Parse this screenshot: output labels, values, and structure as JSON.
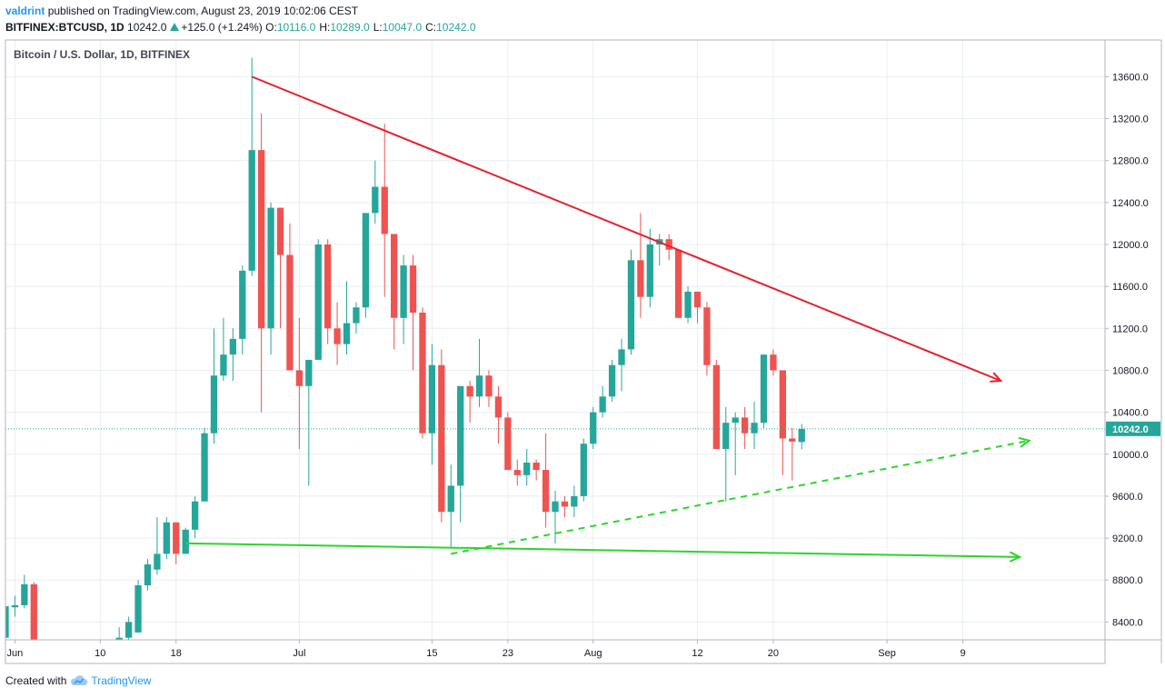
{
  "header": {
    "user": "valdrint",
    "published_text": "published on TradingView.com, August 23, 2019 10:02:06 CEST",
    "symbol": "BITFINEX:BTCUSD, 1D",
    "last": "10242.0",
    "change": "+125.0 (+1.24%)",
    "open_label": "O:",
    "open_value": "10116.0",
    "high_label": "H:",
    "high_value": "10289.0",
    "low_label": "L:",
    "low_value": "10047.0",
    "close_label": "C:",
    "close_value": "10242.0"
  },
  "footer": {
    "created_with": "Created with",
    "brand": "TradingView"
  },
  "colors": {
    "up": "#26a69a",
    "down": "#ef5350",
    "resistance": "#e5202b",
    "support": "#2ad62a",
    "grid": "#e8eef4"
  },
  "chart_data": {
    "type": "candlestick",
    "title": "Bitcoin / U.S. Dollar, 1D, BITFINEX",
    "price_label": "10242.0",
    "last_price": 10242.0,
    "ylim": [
      8230,
      13950
    ],
    "xlim": [
      "2019-05-31",
      "2019-09-24"
    ],
    "y_ticks": [
      8400,
      8800,
      9200,
      9600,
      10000,
      10400,
      10800,
      11200,
      11600,
      12000,
      12400,
      12800,
      13200,
      13600
    ],
    "y_tick_labels": [
      "8400.0",
      "8800.0",
      "9200.0",
      "9600.0",
      "10000.0",
      "10400.0",
      "10800.0",
      "11200.0",
      "11600.0",
      "12000.0",
      "12400.0",
      "12800.0",
      "13200.0",
      "13600.0"
    ],
    "x_ticks": [
      {
        "date": "2019-06-01",
        "label": "Jun"
      },
      {
        "date": "2019-06-10",
        "label": "10"
      },
      {
        "date": "2019-06-18",
        "label": "18"
      },
      {
        "date": "2019-07-01",
        "label": "Jul"
      },
      {
        "date": "2019-07-15",
        "label": "15"
      },
      {
        "date": "2019-07-23",
        "label": "23"
      },
      {
        "date": "2019-08-01",
        "label": "Aug"
      },
      {
        "date": "2019-08-12",
        "label": "12"
      },
      {
        "date": "2019-08-20",
        "label": "20"
      },
      {
        "date": "2019-09-01",
        "label": "Sep"
      },
      {
        "date": "2019-09-09",
        "label": "9"
      }
    ],
    "ohlc": [
      {
        "d": "2019-05-31",
        "o": 8250,
        "h": 8600,
        "l": 8100,
        "c": 8550
      },
      {
        "d": "2019-06-01",
        "o": 8540,
        "h": 8650,
        "l": 8450,
        "c": 8560
      },
      {
        "d": "2019-06-02",
        "o": 8560,
        "h": 8850,
        "l": 8530,
        "c": 8760
      },
      {
        "d": "2019-06-03",
        "o": 8760,
        "h": 8780,
        "l": 7900,
        "c": 8150
      },
      {
        "d": "2019-06-12",
        "o": 8100,
        "h": 8350,
        "l": 8050,
        "c": 8250
      },
      {
        "d": "2019-06-13",
        "o": 8250,
        "h": 8450,
        "l": 8200,
        "c": 8400
      },
      {
        "d": "2019-06-14",
        "o": 8300,
        "h": 8800,
        "l": 8300,
        "c": 8750
      },
      {
        "d": "2019-06-15",
        "o": 8750,
        "h": 9000,
        "l": 8700,
        "c": 8950
      },
      {
        "d": "2019-06-16",
        "o": 8900,
        "h": 9400,
        "l": 8850,
        "c": 9050
      },
      {
        "d": "2019-06-17",
        "o": 9050,
        "h": 9400,
        "l": 9000,
        "c": 9350
      },
      {
        "d": "2019-06-18",
        "o": 9350,
        "h": 9350,
        "l": 8950,
        "c": 9050
      },
      {
        "d": "2019-06-19",
        "o": 9050,
        "h": 9300,
        "l": 9050,
        "c": 9280
      },
      {
        "d": "2019-06-20",
        "o": 9280,
        "h": 9600,
        "l": 9200,
        "c": 9550
      },
      {
        "d": "2019-06-21",
        "o": 9550,
        "h": 10250,
        "l": 9550,
        "c": 10200
      },
      {
        "d": "2019-06-22",
        "o": 10200,
        "h": 11200,
        "l": 10100,
        "c": 10750
      },
      {
        "d": "2019-06-23",
        "o": 10750,
        "h": 11300,
        "l": 10700,
        "c": 10950
      },
      {
        "d": "2019-06-24",
        "o": 10950,
        "h": 11200,
        "l": 10700,
        "c": 11100
      },
      {
        "d": "2019-06-25",
        "o": 11100,
        "h": 11800,
        "l": 10950,
        "c": 11750
      },
      {
        "d": "2019-06-26",
        "o": 11750,
        "h": 13780,
        "l": 11700,
        "c": 12900
      },
      {
        "d": "2019-06-27",
        "o": 12900,
        "h": 13250,
        "l": 10400,
        "c": 11200
      },
      {
        "d": "2019-06-28",
        "o": 11200,
        "h": 12400,
        "l": 10950,
        "c": 12350
      },
      {
        "d": "2019-06-29",
        "o": 12350,
        "h": 12350,
        "l": 11200,
        "c": 11900
      },
      {
        "d": "2019-06-30",
        "o": 11900,
        "h": 12200,
        "l": 10800,
        "c": 10800
      },
      {
        "d": "2019-07-01",
        "o": 10800,
        "h": 11300,
        "l": 10050,
        "c": 10650
      },
      {
        "d": "2019-07-02",
        "o": 10650,
        "h": 10900,
        "l": 9700,
        "c": 10900
      },
      {
        "d": "2019-07-03",
        "o": 10900,
        "h": 12050,
        "l": 10900,
        "c": 12000
      },
      {
        "d": "2019-07-04",
        "o": 12000,
        "h": 12050,
        "l": 11050,
        "c": 11200
      },
      {
        "d": "2019-07-05",
        "o": 11200,
        "h": 11450,
        "l": 10850,
        "c": 11050
      },
      {
        "d": "2019-07-06",
        "o": 11050,
        "h": 11650,
        "l": 10950,
        "c": 11250
      },
      {
        "d": "2019-07-07",
        "o": 11250,
        "h": 11450,
        "l": 11150,
        "c": 11400
      },
      {
        "d": "2019-07-08",
        "o": 11400,
        "h": 12300,
        "l": 11300,
        "c": 12300
      },
      {
        "d": "2019-07-09",
        "o": 12300,
        "h": 12800,
        "l": 12200,
        "c": 12550
      },
      {
        "d": "2019-07-10",
        "o": 12550,
        "h": 13150,
        "l": 11500,
        "c": 12100
      },
      {
        "d": "2019-07-11",
        "o": 12100,
        "h": 12100,
        "l": 11000,
        "c": 11300
      },
      {
        "d": "2019-07-12",
        "o": 11300,
        "h": 11900,
        "l": 11050,
        "c": 11800
      },
      {
        "d": "2019-07-13",
        "o": 11800,
        "h": 11900,
        "l": 10800,
        "c": 11350
      },
      {
        "d": "2019-07-14",
        "o": 11350,
        "h": 11400,
        "l": 10150,
        "c": 10200
      },
      {
        "d": "2019-07-15",
        "o": 10200,
        "h": 11050,
        "l": 9900,
        "c": 10850
      },
      {
        "d": "2019-07-16",
        "o": 10850,
        "h": 11000,
        "l": 9350,
        "c": 9450
      },
      {
        "d": "2019-07-17",
        "o": 9450,
        "h": 9900,
        "l": 9100,
        "c": 9700
      },
      {
        "d": "2019-07-18",
        "o": 9700,
        "h": 10650,
        "l": 9350,
        "c": 10650
      },
      {
        "d": "2019-07-19",
        "o": 10650,
        "h": 10700,
        "l": 10300,
        "c": 10550
      },
      {
        "d": "2019-07-20",
        "o": 10550,
        "h": 11100,
        "l": 10450,
        "c": 10750
      },
      {
        "d": "2019-07-21",
        "o": 10750,
        "h": 10800,
        "l": 10450,
        "c": 10550
      },
      {
        "d": "2019-07-22",
        "o": 10550,
        "h": 10650,
        "l": 10100,
        "c": 10350
      },
      {
        "d": "2019-07-23",
        "o": 10350,
        "h": 10400,
        "l": 9850,
        "c": 9850
      },
      {
        "d": "2019-07-24",
        "o": 9850,
        "h": 9950,
        "l": 9700,
        "c": 9800
      },
      {
        "d": "2019-07-25",
        "o": 9800,
        "h": 10050,
        "l": 9700,
        "c": 9920
      },
      {
        "d": "2019-07-26",
        "o": 9920,
        "h": 9950,
        "l": 9750,
        "c": 9850
      },
      {
        "d": "2019-07-27",
        "o": 9850,
        "h": 10200,
        "l": 9300,
        "c": 9450
      },
      {
        "d": "2019-07-28",
        "o": 9450,
        "h": 9650,
        "l": 9150,
        "c": 9550
      },
      {
        "d": "2019-07-29",
        "o": 9550,
        "h": 9600,
        "l": 9400,
        "c": 9500
      },
      {
        "d": "2019-07-30",
        "o": 9500,
        "h": 9700,
        "l": 9400,
        "c": 9600
      },
      {
        "d": "2019-07-31",
        "o": 9600,
        "h": 10150,
        "l": 9550,
        "c": 10100
      },
      {
        "d": "2019-08-01",
        "o": 10100,
        "h": 10450,
        "l": 10050,
        "c": 10400
      },
      {
        "d": "2019-08-02",
        "o": 10400,
        "h": 10650,
        "l": 10350,
        "c": 10550
      },
      {
        "d": "2019-08-03",
        "o": 10550,
        "h": 10900,
        "l": 10500,
        "c": 10850
      },
      {
        "d": "2019-08-04",
        "o": 10850,
        "h": 11100,
        "l": 10600,
        "c": 11000
      },
      {
        "d": "2019-08-05",
        "o": 11000,
        "h": 11950,
        "l": 10950,
        "c": 11850
      },
      {
        "d": "2019-08-06",
        "o": 11850,
        "h": 12300,
        "l": 11300,
        "c": 11500
      },
      {
        "d": "2019-08-07",
        "o": 11500,
        "h": 12150,
        "l": 11400,
        "c": 12000
      },
      {
        "d": "2019-08-08",
        "o": 12000,
        "h": 12100,
        "l": 11800,
        "c": 12050
      },
      {
        "d": "2019-08-09",
        "o": 12050,
        "h": 12100,
        "l": 11850,
        "c": 11950
      },
      {
        "d": "2019-08-10",
        "o": 11950,
        "h": 11950,
        "l": 11300,
        "c": 11300
      },
      {
        "d": "2019-08-11",
        "o": 11300,
        "h": 11600,
        "l": 11250,
        "c": 11550
      },
      {
        "d": "2019-08-12",
        "o": 11550,
        "h": 11550,
        "l": 11250,
        "c": 11400
      },
      {
        "d": "2019-08-13",
        "o": 11400,
        "h": 11450,
        "l": 10750,
        "c": 10850
      },
      {
        "d": "2019-08-14",
        "o": 10850,
        "h": 10900,
        "l": 10050,
        "c": 10050
      },
      {
        "d": "2019-08-15",
        "o": 10050,
        "h": 10450,
        "l": 9550,
        "c": 10300
      },
      {
        "d": "2019-08-16",
        "o": 10300,
        "h": 10400,
        "l": 9800,
        "c": 10350
      },
      {
        "d": "2019-08-17",
        "o": 10350,
        "h": 10450,
        "l": 10050,
        "c": 10200
      },
      {
        "d": "2019-08-18",
        "o": 10200,
        "h": 10500,
        "l": 10050,
        "c": 10300
      },
      {
        "d": "2019-08-19",
        "o": 10300,
        "h": 10950,
        "l": 10250,
        "c": 10950
      },
      {
        "d": "2019-08-20",
        "o": 10950,
        "h": 11000,
        "l": 10750,
        "c": 10800
      },
      {
        "d": "2019-08-21",
        "o": 10800,
        "h": 10800,
        "l": 9800,
        "c": 10150
      },
      {
        "d": "2019-08-22",
        "o": 10150,
        "h": 10250,
        "l": 9750,
        "c": 10120
      },
      {
        "d": "2019-08-23",
        "o": 10116,
        "h": 10289,
        "l": 10047,
        "c": 10242
      }
    ],
    "trendlines": [
      {
        "name": "resistance",
        "style": "solid",
        "color": "#e5202b",
        "from": {
          "date": "2019-06-26",
          "price": 13600
        },
        "to": {
          "date": "2019-09-13",
          "price": 10700
        },
        "arrow": true
      },
      {
        "name": "support",
        "style": "solid",
        "color": "#2ad62a",
        "from": {
          "date": "2019-06-19",
          "price": 9150
        },
        "to": {
          "date": "2019-09-15",
          "price": 9020
        },
        "arrow": true
      },
      {
        "name": "rising-support",
        "style": "dashed",
        "color": "#2ad62a",
        "from": {
          "date": "2019-07-17",
          "price": 9050
        },
        "to": {
          "date": "2019-09-16",
          "price": 10130
        },
        "arrow": true
      }
    ]
  }
}
